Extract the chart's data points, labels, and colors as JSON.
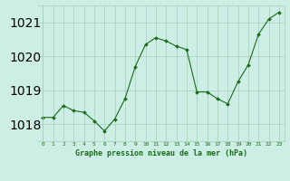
{
  "x": [
    0,
    1,
    2,
    3,
    4,
    5,
    6,
    7,
    8,
    9,
    10,
    11,
    12,
    13,
    14,
    15,
    16,
    17,
    18,
    19,
    20,
    21,
    22,
    23
  ],
  "y": [
    1018.2,
    1018.2,
    1018.55,
    1018.4,
    1018.35,
    1018.1,
    1017.8,
    1018.15,
    1018.75,
    1019.7,
    1020.35,
    1020.55,
    1020.45,
    1020.3,
    1020.2,
    1018.95,
    1018.95,
    1018.75,
    1018.6,
    1019.25,
    1019.75,
    1020.65,
    1021.1,
    1021.3
  ],
  "line_color": "#1a6b1a",
  "marker_color": "#1a6b1a",
  "bg_color": "#cceee4",
  "grid_color": "#aaccbb",
  "xlabel": "Graphe pression niveau de la mer (hPa)",
  "xlabel_color": "#1a6b1a",
  "tick_color": "#1a6b1a",
  "ylim": [
    1017.5,
    1021.5
  ],
  "yticks": [
    1018,
    1019,
    1020,
    1021
  ],
  "xlim": [
    -0.5,
    23.5
  ],
  "xticks": [
    0,
    1,
    2,
    3,
    4,
    5,
    6,
    7,
    8,
    9,
    10,
    11,
    12,
    13,
    14,
    15,
    16,
    17,
    18,
    19,
    20,
    21,
    22,
    23
  ]
}
